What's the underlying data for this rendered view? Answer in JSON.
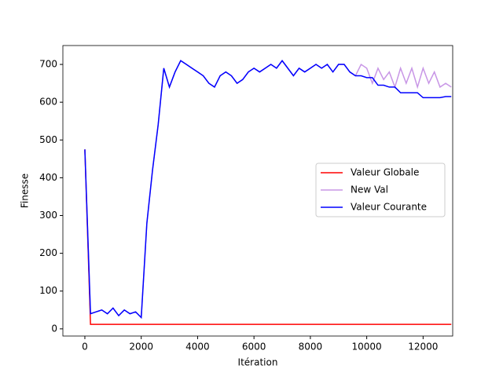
{
  "chart_data": {
    "type": "line",
    "xlabel": "Itération",
    "ylabel": "Finesse",
    "x": [
      0,
      200,
      400,
      600,
      800,
      1000,
      1200,
      1400,
      1600,
      1800,
      2000,
      2200,
      2400,
      2600,
      2800,
      3000,
      3200,
      3400,
      3600,
      3800,
      4000,
      4200,
      4400,
      4600,
      4800,
      5000,
      5200,
      5400,
      5600,
      5800,
      6000,
      6200,
      6400,
      6600,
      6800,
      7000,
      7200,
      7400,
      7600,
      7800,
      8000,
      8200,
      8400,
      8600,
      8800,
      9000,
      9200,
      9400,
      9600,
      9800,
      10000,
      10200,
      10400,
      10600,
      10800,
      11000,
      11200,
      11400,
      11600,
      11800,
      12000,
      12200,
      12400,
      12600,
      12800,
      13000
    ],
    "series": [
      {
        "name": "Valeur Globale",
        "color": "#ff0000",
        "values": [
          475,
          12,
          12,
          12,
          12,
          12,
          12,
          12,
          12,
          12,
          12,
          12,
          12,
          12,
          12,
          12,
          12,
          12,
          12,
          12,
          12,
          12,
          12,
          12,
          12,
          12,
          12,
          12,
          12,
          12,
          12,
          12,
          12,
          12,
          12,
          12,
          12,
          12,
          12,
          12,
          12,
          12,
          12,
          12,
          12,
          12,
          12,
          12,
          12,
          12,
          12,
          12,
          12,
          12,
          12,
          12,
          12,
          12,
          12,
          12,
          12,
          12,
          12,
          12,
          12,
          12
        ]
      },
      {
        "name": "New Val",
        "color": "#c896e6",
        "values": [
          475,
          40,
          45,
          50,
          40,
          55,
          35,
          50,
          40,
          45,
          30,
          280,
          420,
          540,
          690,
          640,
          680,
          710,
          700,
          690,
          680,
          670,
          650,
          640,
          670,
          680,
          670,
          650,
          660,
          680,
          690,
          680,
          690,
          700,
          690,
          710,
          690,
          670,
          690,
          680,
          690,
          700,
          690,
          700,
          680,
          700,
          700,
          680,
          670,
          700,
          690,
          650,
          690,
          660,
          680,
          640,
          690,
          650,
          690,
          640,
          690,
          650,
          680,
          640,
          650,
          640
        ]
      },
      {
        "name": "Valeur Courante",
        "color": "#0000ff",
        "values": [
          475,
          40,
          45,
          50,
          40,
          55,
          35,
          50,
          40,
          45,
          30,
          280,
          420,
          540,
          690,
          640,
          680,
          710,
          700,
          690,
          680,
          670,
          650,
          640,
          670,
          680,
          670,
          650,
          660,
          680,
          690,
          680,
          690,
          700,
          690,
          710,
          690,
          670,
          690,
          680,
          690,
          700,
          690,
          700,
          680,
          700,
          700,
          680,
          670,
          670,
          665,
          665,
          645,
          645,
          640,
          640,
          625,
          625,
          625,
          625,
          612,
          612,
          612,
          612,
          615,
          615
        ]
      }
    ],
    "xlim": [
      -780,
      13050
    ],
    "ylim": [
      -19,
      750
    ],
    "xticks": [
      0,
      2000,
      4000,
      6000,
      8000,
      10000,
      12000
    ],
    "yticks": [
      0,
      100,
      200,
      300,
      400,
      500,
      600,
      700
    ],
    "legend": "center right"
  }
}
